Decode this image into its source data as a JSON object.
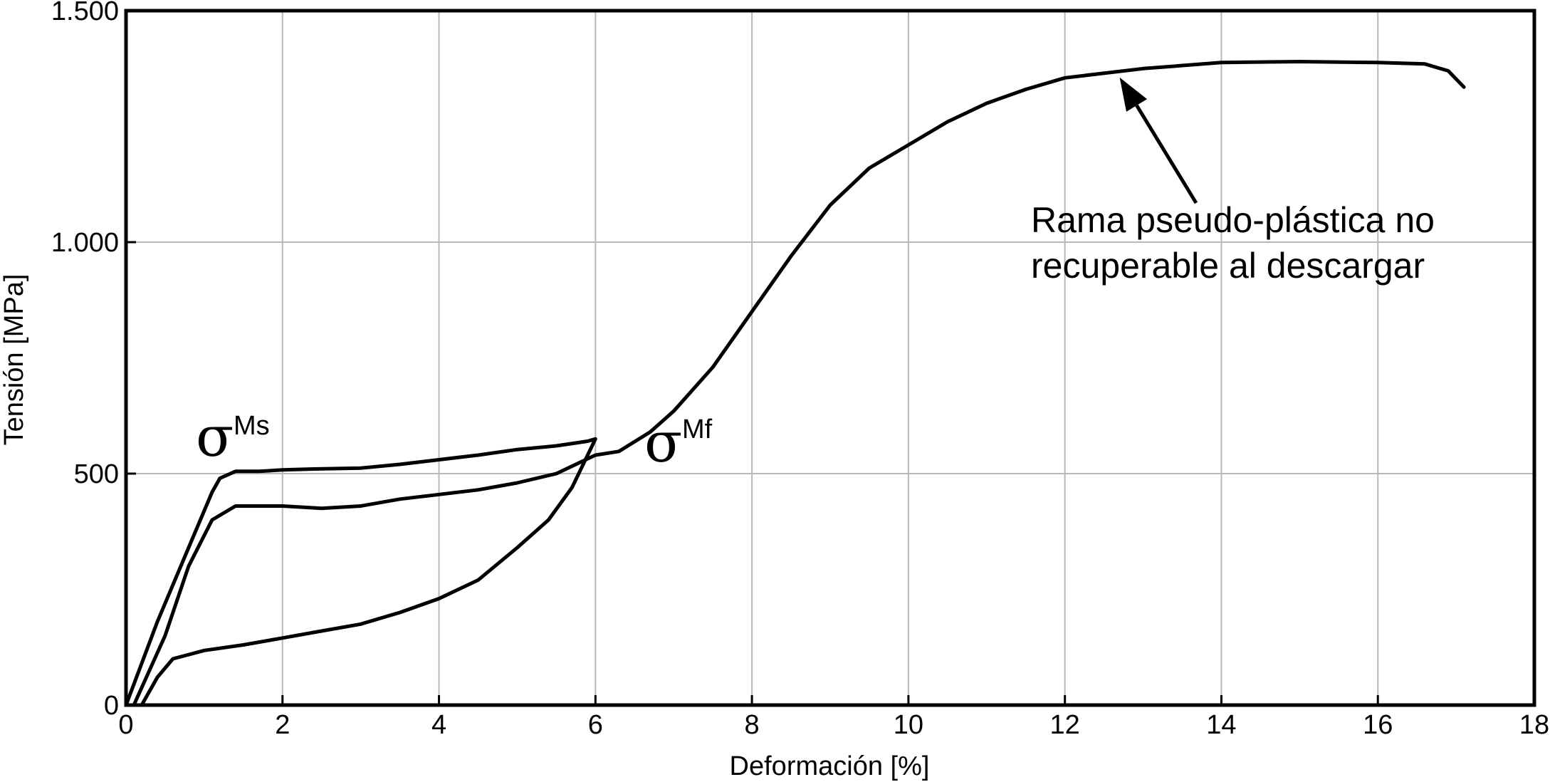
{
  "chart_data": {
    "type": "line",
    "xlabel": "Deformación [%]",
    "ylabel": "Tensión [MPa]",
    "xlim": [
      0,
      18
    ],
    "ylim": [
      0,
      1500
    ],
    "xticks": [
      0,
      2,
      4,
      6,
      8,
      10,
      12,
      14,
      16,
      18
    ],
    "xtick_labels": [
      "0",
      "2",
      "4",
      "6",
      "8",
      "10",
      "12",
      "14",
      "16",
      "18"
    ],
    "yticks": [
      0,
      500,
      1000,
      1500
    ],
    "ytick_labels": [
      "0",
      "500",
      "1.000",
      "1.500"
    ],
    "grid": true,
    "series": [
      {
        "values": [
          [
            0,
            0
          ],
          [
            0.4,
            180
          ],
          [
            0.8,
            340
          ],
          [
            1.1,
            460
          ],
          [
            1.2,
            490
          ],
          [
            1.4,
            505
          ],
          [
            1.7,
            505
          ],
          [
            2.0,
            508
          ],
          [
            2.4,
            510
          ],
          [
            3.0,
            512
          ],
          [
            3.5,
            520
          ],
          [
            4.0,
            530
          ],
          [
            4.5,
            540
          ],
          [
            5.0,
            552
          ],
          [
            5.5,
            560
          ],
          [
            5.9,
            570
          ],
          [
            6.0,
            575
          ],
          [
            5.7,
            470
          ],
          [
            5.4,
            400
          ],
          [
            5.0,
            340
          ],
          [
            4.5,
            270
          ],
          [
            4.0,
            230
          ],
          [
            3.5,
            200
          ],
          [
            3.0,
            175
          ],
          [
            2.5,
            160
          ],
          [
            2.0,
            145
          ],
          [
            1.5,
            130
          ],
          [
            1.0,
            118
          ],
          [
            0.6,
            100
          ],
          [
            0.4,
            60
          ],
          [
            0.2,
            0
          ]
        ]
      },
      {
        "values": [
          [
            0.1,
            0
          ],
          [
            0.5,
            150
          ],
          [
            0.8,
            300
          ],
          [
            1.1,
            400
          ],
          [
            1.4,
            430
          ],
          [
            2.0,
            430
          ],
          [
            2.5,
            425
          ],
          [
            3.0,
            430
          ],
          [
            3.5,
            445
          ],
          [
            4.0,
            455
          ],
          [
            4.5,
            465
          ],
          [
            5.0,
            480
          ],
          [
            5.5,
            500
          ],
          [
            6.0,
            540
          ],
          [
            6.3,
            548
          ],
          [
            6.7,
            590
          ],
          [
            7.0,
            635
          ],
          [
            7.5,
            730
          ],
          [
            8.0,
            850
          ],
          [
            8.5,
            970
          ],
          [
            9.0,
            1080
          ],
          [
            9.5,
            1160
          ],
          [
            10.0,
            1210
          ],
          [
            10.5,
            1260
          ],
          [
            11.0,
            1300
          ],
          [
            11.5,
            1330
          ],
          [
            12.0,
            1355
          ],
          [
            13.0,
            1375
          ],
          [
            14.0,
            1388
          ],
          [
            15.0,
            1390
          ],
          [
            16.0,
            1388
          ],
          [
            16.6,
            1385
          ],
          [
            16.9,
            1370
          ],
          [
            17.1,
            1335
          ]
        ]
      }
    ],
    "annotations": [
      {
        "text_lines": [
          "Rama pseudo-plástica no",
          "recuperable al descargar"
        ],
        "arrow_to": [
          12.7,
          1365
        ]
      },
      {
        "symbol": "σ",
        "sup": "Ms",
        "near": [
          1.1,
          480
        ]
      },
      {
        "symbol": "σ",
        "sup": "Mf",
        "near": [
          6.7,
          560
        ]
      }
    ]
  }
}
